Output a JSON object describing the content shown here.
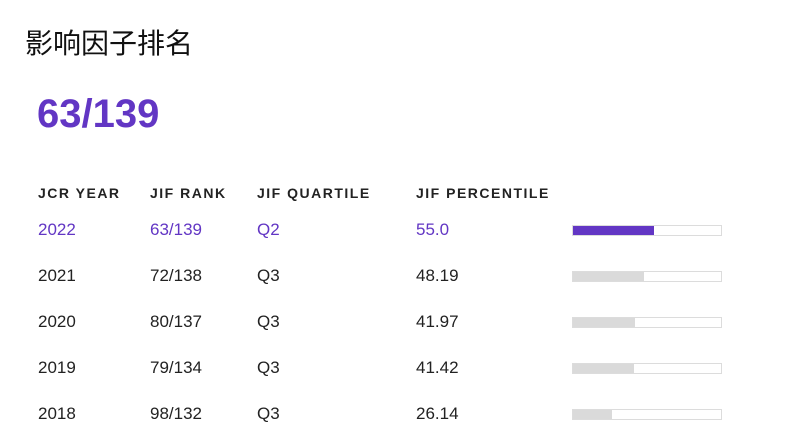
{
  "title": "影响因子排名",
  "rank": "63/139",
  "table": {
    "headers": [
      "JCR YEAR",
      "JIF RANK",
      "JIF QUARTILE",
      "JIF PERCENTILE"
    ],
    "rows": [
      [
        "2022",
        "63/139",
        "Q2",
        "55.0"
      ],
      [
        "2021",
        "72/138",
        "Q3",
        "48.19"
      ],
      [
        "2020",
        "80/137",
        "Q3",
        "41.97"
      ],
      [
        "2019",
        "79/134",
        "Q3",
        "41.42"
      ],
      [
        "2018",
        "98/132",
        "Q3",
        "26.14"
      ]
    ]
  }
}
